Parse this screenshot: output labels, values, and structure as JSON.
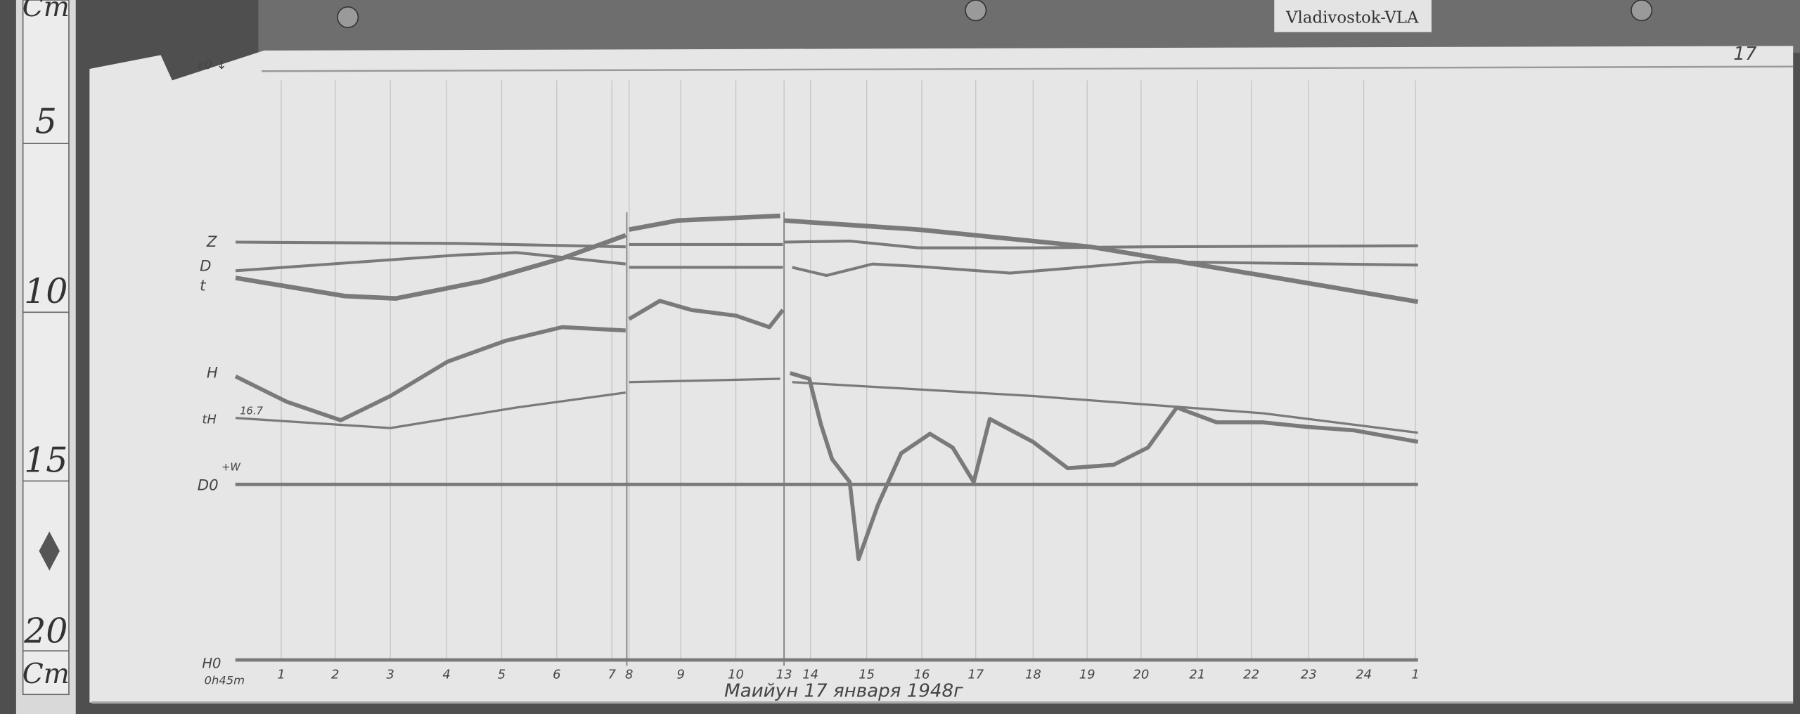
{
  "tag_label": "Vladivostok-VLA",
  "sheet_number": "17",
  "caption": "Маийун 17 января 1948г",
  "ruler": {
    "unit_top": "Cm",
    "unit_bottom": "Cm",
    "marks": [
      "5",
      "10",
      "15",
      "20"
    ]
  },
  "trace_labels": {
    "z": "Z",
    "d": "D",
    "t": "t",
    "h": "H",
    "th": "tH",
    "h_scale": "16.7",
    "d0": "D0",
    "d0_dir": "+W",
    "h0": "H0",
    "start_time": "0h45m",
    "corner": "ε0 ↓"
  },
  "colors": {
    "paper": "#e6e6e6",
    "trace": "#7a7a7a",
    "background": "#4a4a4a"
  },
  "chart_data": {
    "type": "line",
    "title": "",
    "xlabel": "",
    "ylabel": "",
    "x_unit": "hours",
    "y_unit": "cm (ruler reading)",
    "tick_labels": [
      "1",
      "2",
      "3",
      "4",
      "5",
      "6",
      "7",
      "8",
      "9",
      "10",
      "13",
      "14",
      "15",
      "16",
      "17",
      "18",
      "19",
      "20",
      "21",
      "22",
      "23",
      "24",
      "1"
    ],
    "grid": true,
    "series": [
      {
        "name": "Z",
        "segments": [
          [
            [
              0.17,
              8.67
            ],
            [
              4.23,
              8.71
            ],
            [
              7.25,
              8.81
            ]
          ],
          [
            [
              8.0,
              8.74
            ],
            [
              10.85,
              8.74
            ]
          ],
          [
            [
              13.52,
              8.67
            ],
            [
              14.71,
              8.64
            ],
            [
              15.95,
              8.84
            ],
            [
              18.02,
              8.84
            ],
            [
              20.1,
              8.81
            ],
            [
              24.98,
              8.78
            ]
          ]
        ]
      },
      {
        "name": "D",
        "segments": [
          [
            [
              0.17,
              9.52
            ],
            [
              4.23,
              9.05
            ],
            [
              5.27,
              8.98
            ],
            [
              7.25,
              9.32
            ]
          ],
          [
            [
              8.0,
              9.42
            ],
            [
              10.85,
              9.42
            ]
          ],
          [
            [
              13.67,
              9.42
            ],
            [
              14.29,
              9.66
            ],
            [
              15.12,
              9.32
            ],
            [
              15.95,
              9.39
            ],
            [
              17.61,
              9.59
            ],
            [
              19.06,
              9.39
            ],
            [
              20.1,
              9.25
            ],
            [
              24.98,
              9.35
            ]
          ]
        ]
      },
      {
        "name": "t",
        "segments": [
          [
            [
              0.17,
              9.73
            ],
            [
              2.15,
              10.27
            ],
            [
              3.08,
              10.34
            ],
            [
              4.65,
              9.83
            ],
            [
              6.1,
              9.15
            ],
            [
              7.25,
              8.47
            ]
          ],
          [
            [
              8.0,
              8.3
            ],
            [
              8.9,
              8.03
            ],
            [
              10.8,
              7.89
            ]
          ],
          [
            [
              13.52,
              8.03
            ],
            [
              15.95,
              8.3
            ],
            [
              19.06,
              8.81
            ],
            [
              22.17,
              9.66
            ],
            [
              24.98,
              10.44
            ]
          ]
        ]
      },
      {
        "name": "H",
        "segments": [
          [
            [
              0.17,
              12.65
            ],
            [
              1.1,
              13.4
            ],
            [
              2.08,
              13.95
            ],
            [
              2.98,
              13.23
            ],
            [
              4.02,
              12.21
            ],
            [
              5.06,
              11.6
            ],
            [
              6.1,
              11.19
            ],
            [
              7.25,
              11.29
            ]
          ],
          [
            [
              8.0,
              10.95
            ],
            [
              8.57,
              10.41
            ],
            [
              9.15,
              10.68
            ],
            [
              9.98,
              10.85
            ],
            [
              10.6,
              11.19
            ],
            [
              10.85,
              10.68
            ]
          ],
          [
            [
              13.63,
              12.55
            ],
            [
              13.98,
              12.72
            ],
            [
              14.19,
              14.08
            ],
            [
              14.39,
              15.1
            ],
            [
              14.71,
              15.78
            ],
            [
              14.87,
              18.06
            ],
            [
              15.22,
              16.46
            ],
            [
              15.64,
              14.93
            ],
            [
              16.16,
              14.35
            ],
            [
              16.57,
              14.76
            ],
            [
              16.95,
              15.78
            ],
            [
              17.24,
              13.91
            ],
            [
              18.02,
              14.59
            ],
            [
              18.65,
              15.37
            ],
            [
              19.48,
              15.27
            ],
            [
              20.1,
              14.76
            ],
            [
              20.62,
              13.57
            ],
            [
              21.34,
              14.01
            ],
            [
              22.17,
              14.01
            ],
            [
              23.0,
              14.15
            ],
            [
              23.83,
              14.25
            ],
            [
              24.98,
              14.59
            ]
          ]
        ]
      },
      {
        "name": "tH",
        "segments": [
          [
            [
              0.17,
              13.88
            ],
            [
              2.98,
              14.18
            ],
            [
              5.27,
              13.57
            ],
            [
              7.25,
              13.13
            ]
          ],
          [
            [
              8.0,
              12.82
            ],
            [
              10.8,
              12.72
            ]
          ],
          [
            [
              13.67,
              12.82
            ],
            [
              18.02,
              13.23
            ],
            [
              22.17,
              13.74
            ],
            [
              24.98,
              14.32
            ]
          ]
        ]
      },
      {
        "name": "D0",
        "segments": [
          [
            [
              0.17,
              15.85
            ],
            [
              24.98,
              15.85
            ]
          ]
        ]
      },
      {
        "name": "H0",
        "segments": [
          [
            [
              0.17,
              21.05
            ],
            [
              24.98,
              21.05
            ]
          ]
        ]
      }
    ]
  }
}
